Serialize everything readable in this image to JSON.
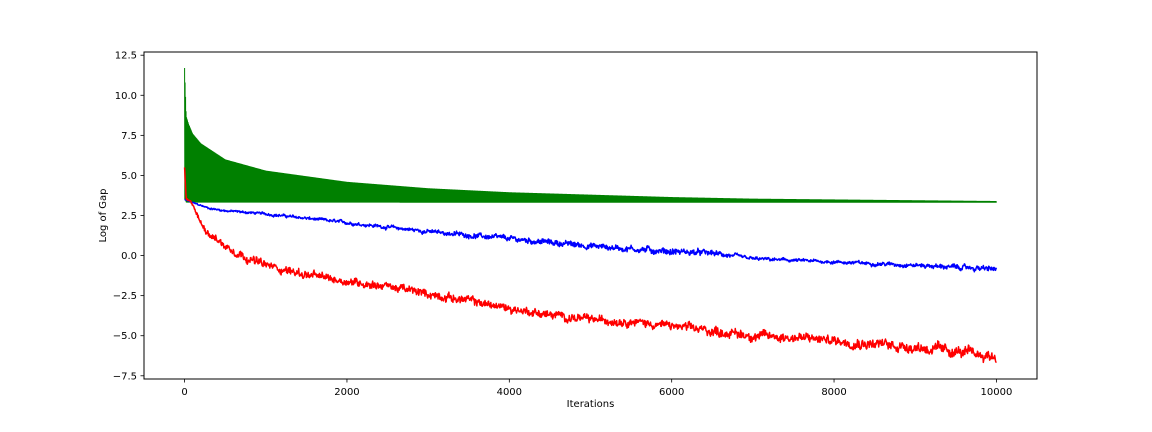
{
  "chart_data": {
    "type": "line",
    "title": "",
    "xlabel": "Iterations",
    "ylabel": "Log of Gap",
    "xlim": [
      -500,
      10500
    ],
    "ylim": [
      -7.7,
      12.7
    ],
    "grid": false,
    "x_ticks": [
      {
        "value": 0,
        "label": "0"
      },
      {
        "value": 2000,
        "label": "2000"
      },
      {
        "value": 4000,
        "label": "4000"
      },
      {
        "value": 6000,
        "label": "6000"
      },
      {
        "value": 8000,
        "label": "8000"
      },
      {
        "value": 10000,
        "label": "10000"
      }
    ],
    "y_ticks": [
      {
        "value": -7.5,
        "label": "−7.5"
      },
      {
        "value": -5.0,
        "label": "−5.0"
      },
      {
        "value": -2.5,
        "label": "−2.5"
      },
      {
        "value": 0.0,
        "label": "0.0"
      },
      {
        "value": 2.5,
        "label": "2.5"
      },
      {
        "value": 5.0,
        "label": "5.0"
      },
      {
        "value": 7.5,
        "label": "7.5"
      },
      {
        "value": 10.0,
        "label": "10.0"
      },
      {
        "value": 12.5,
        "label": "12.5"
      }
    ],
    "series": [
      {
        "color": "#008000",
        "style": "oscillating-band",
        "x": [
          0,
          20,
          50,
          100,
          200,
          500,
          1000,
          2000,
          3000,
          4000,
          5000,
          6000,
          7000,
          8000,
          9000,
          10000
        ],
        "upper": [
          11.7,
          8.7,
          8.2,
          7.6,
          7.0,
          6.0,
          5.3,
          4.6,
          4.2,
          3.95,
          3.8,
          3.65,
          3.55,
          3.5,
          3.45,
          3.4
        ],
        "lower": [
          3.5,
          3.3,
          3.3,
          3.3,
          3.3,
          3.3,
          3.3,
          3.3,
          3.3,
          3.3,
          3.3,
          3.3,
          3.3,
          3.3,
          3.3,
          3.3
        ]
      },
      {
        "color": "#0000ff",
        "style": "noisy-line",
        "x": [
          0,
          100,
          300,
          500,
          1000,
          2000,
          3000,
          4000,
          5000,
          6000,
          6500,
          7000,
          8000,
          9000,
          10000
        ],
        "y": [
          3.5,
          3.3,
          2.95,
          2.8,
          2.6,
          2.05,
          1.5,
          1.05,
          0.6,
          0.25,
          0.15,
          -0.2,
          -0.4,
          -0.6,
          -0.85
        ],
        "noise": [
          0,
          0.05,
          0.07,
          0.08,
          0.1,
          0.12,
          0.15,
          0.2,
          0.22,
          0.25,
          0.2,
          0.12,
          0.12,
          0.15,
          0.2
        ]
      },
      {
        "color": "#ff0000",
        "style": "noisy-line",
        "x": [
          0,
          20,
          100,
          200,
          300,
          500,
          800,
          1000,
          1500,
          2000,
          2500,
          3000,
          3500,
          4000,
          4500,
          5000,
          5500,
          6000,
          6500,
          7000,
          7500,
          8000,
          8500,
          9000,
          9500,
          10000
        ],
        "y": [
          5.5,
          3.5,
          3.2,
          2.0,
          1.4,
          0.6,
          -0.2,
          -0.6,
          -1.2,
          -1.6,
          -1.9,
          -2.4,
          -2.8,
          -3.3,
          -3.7,
          -4.0,
          -4.1,
          -4.4,
          -4.7,
          -5.0,
          -5.1,
          -5.3,
          -5.5,
          -5.7,
          -6.0,
          -6.3
        ],
        "noise": [
          0,
          0.1,
          0.15,
          0.2,
          0.25,
          0.3,
          0.3,
          0.3,
          0.3,
          0.3,
          0.3,
          0.3,
          0.3,
          0.3,
          0.3,
          0.3,
          0.3,
          0.3,
          0.35,
          0.35,
          0.35,
          0.35,
          0.4,
          0.4,
          0.4,
          0.4
        ]
      }
    ]
  }
}
